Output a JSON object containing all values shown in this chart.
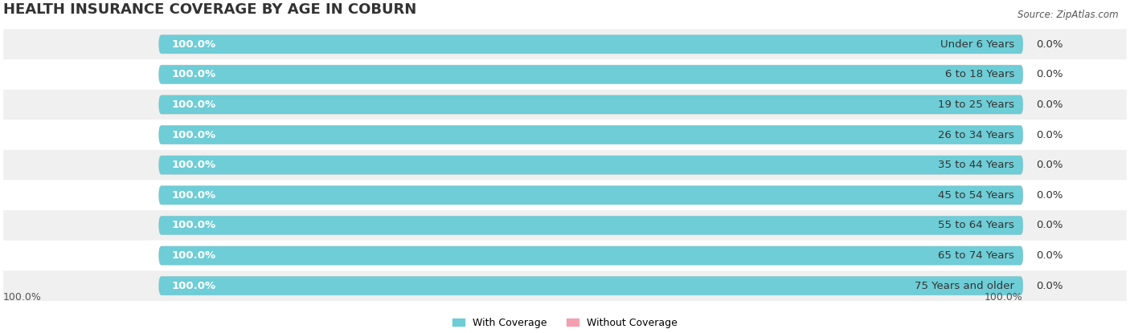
{
  "title": "HEALTH INSURANCE COVERAGE BY AGE IN COBURN",
  "source": "Source: ZipAtlas.com",
  "categories": [
    "Under 6 Years",
    "6 to 18 Years",
    "19 to 25 Years",
    "26 to 34 Years",
    "35 to 44 Years",
    "45 to 54 Years",
    "55 to 64 Years",
    "65 to 74 Years",
    "75 Years and older"
  ],
  "with_coverage": [
    100.0,
    100.0,
    100.0,
    100.0,
    100.0,
    100.0,
    100.0,
    100.0,
    100.0
  ],
  "without_coverage": [
    0.0,
    0.0,
    0.0,
    0.0,
    0.0,
    0.0,
    0.0,
    0.0,
    0.0
  ],
  "color_with": "#6ecdd6",
  "color_without": "#f4a0b0",
  "bar_bg_color": "#e8e8e8",
  "label_left_value": "100.0%",
  "label_right_value": "100.0%",
  "legend_with": "With Coverage",
  "legend_without": "Without Coverage",
  "title_fontsize": 13,
  "label_fontsize": 9.5,
  "tick_fontsize": 9,
  "background_color": "#ffffff",
  "bar_height": 0.62,
  "row_bg_colors": [
    "#f0f0f0",
    "#ffffff"
  ]
}
